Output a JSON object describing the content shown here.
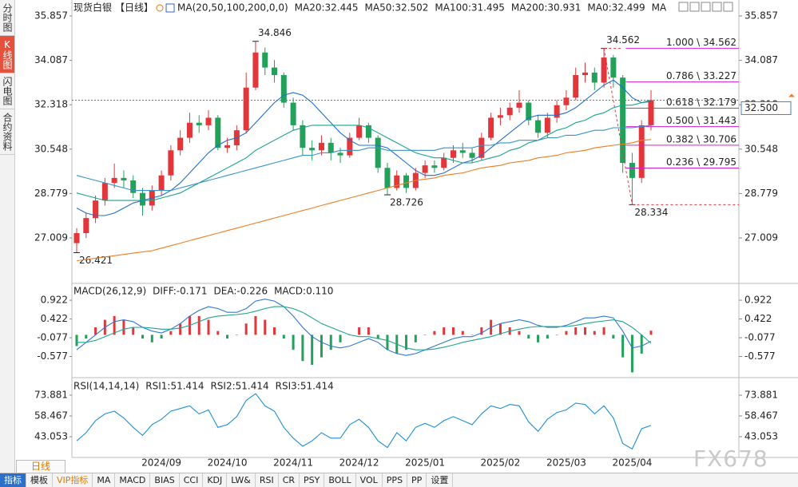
{
  "sidebar": [
    "分时图",
    "K线图",
    "闪电图",
    "合约资料"
  ],
  "header": {
    "symbol": "现货白银",
    "period": "【日线】"
  },
  "toolbar": {
    "period": "日线",
    "tabs": [
      "指标",
      "模板",
      "VIP指标",
      "MA",
      "MACD",
      "BIAS",
      "CCI",
      "KDJ",
      "LW&",
      "RSI",
      "CR",
      "PSY",
      "BOLL",
      "VOL",
      "PPS",
      "PP",
      "设置"
    ]
  },
  "watermark": "FX678",
  "chart_data": [
    {
      "type": "candlestick",
      "title": "MA(20,50,100,200,0,0)",
      "categories": [
        null,
        null,
        null,
        null,
        null,
        null,
        null,
        null,
        null,
        "2024/09",
        null,
        null,
        null,
        null,
        null,
        null,
        "2024/10",
        null,
        null,
        null,
        null,
        null,
        null,
        "2024/11",
        null,
        null,
        null,
        null,
        null,
        null,
        "2024/12",
        null,
        null,
        null,
        null,
        null,
        null,
        "2025/01",
        null,
        null,
        null,
        null,
        null,
        null,
        null,
        "2025/02",
        null,
        null,
        null,
        null,
        null,
        null,
        "2025/03",
        null,
        null,
        null,
        null,
        null,
        null,
        "2025/04",
        null,
        null
      ],
      "candles": [
        [
          26.8,
          27.4,
          26.421,
          27.2
        ],
        [
          27.2,
          28.0,
          27.0,
          27.8
        ],
        [
          27.8,
          28.7,
          27.6,
          28.5
        ],
        [
          28.5,
          29.4,
          28.3,
          29.2
        ],
        [
          29.2,
          29.97,
          29.0,
          29.4
        ],
        [
          29.4,
          29.7,
          29.0,
          29.3
        ],
        [
          29.3,
          29.5,
          28.6,
          28.8
        ],
        [
          28.8,
          29.0,
          27.9,
          28.3
        ],
        [
          28.3,
          29.1,
          28.1,
          28.9
        ],
        [
          28.9,
          29.7,
          28.7,
          29.5
        ],
        [
          29.5,
          30.7,
          29.3,
          30.5
        ],
        [
          30.5,
          31.3,
          30.3,
          31.0
        ],
        [
          31.0,
          32.0,
          30.8,
          31.6
        ],
        [
          31.6,
          31.9,
          31.2,
          31.5
        ],
        [
          31.5,
          32.1,
          31.3,
          31.8
        ],
        [
          31.8,
          31.9,
          30.5,
          30.6
        ],
        [
          30.6,
          31.0,
          30.4,
          30.7
        ],
        [
          30.7,
          31.5,
          30.5,
          31.3
        ],
        [
          31.3,
          33.6,
          31.2,
          33.0
        ],
        [
          33.0,
          34.846,
          32.9,
          34.4
        ],
        [
          34.4,
          34.6,
          33.5,
          33.8
        ],
        [
          33.8,
          34.1,
          33.2,
          33.5
        ],
        [
          33.5,
          33.6,
          32.2,
          32.4
        ],
        [
          32.4,
          32.6,
          31.3,
          31.5
        ],
        [
          31.5,
          31.7,
          30.3,
          30.6
        ],
        [
          30.6,
          30.9,
          30.1,
          30.5
        ],
        [
          30.5,
          31.1,
          30.3,
          30.8
        ],
        [
          30.8,
          31.0,
          30.1,
          30.4
        ],
        [
          30.4,
          30.6,
          30.0,
          30.3
        ],
        [
          30.3,
          31.2,
          30.2,
          31.0
        ],
        [
          31.0,
          31.8,
          30.9,
          31.5
        ],
        [
          31.5,
          31.6,
          30.8,
          31.0
        ],
        [
          31.0,
          31.1,
          29.6,
          29.8
        ],
        [
          29.8,
          30.0,
          28.726,
          29.0
        ],
        [
          29.0,
          29.7,
          28.9,
          29.5
        ],
        [
          29.5,
          29.6,
          28.8,
          29.0
        ],
        [
          29.0,
          29.8,
          28.9,
          29.6
        ],
        [
          29.6,
          30.1,
          29.4,
          29.9
        ],
        [
          29.9,
          30.1,
          29.6,
          29.8
        ],
        [
          29.8,
          30.4,
          29.7,
          30.2
        ],
        [
          30.2,
          30.7,
          30.0,
          30.5
        ],
        [
          30.5,
          30.8,
          30.2,
          30.4
        ],
        [
          30.4,
          30.6,
          30.0,
          30.2
        ],
        [
          30.2,
          31.2,
          30.1,
          31.0
        ],
        [
          31.0,
          32.0,
          30.9,
          31.8
        ],
        [
          31.8,
          32.2,
          31.5,
          31.9
        ],
        [
          31.9,
          32.4,
          31.7,
          32.2
        ],
        [
          32.2,
          32.9,
          32.0,
          32.4
        ],
        [
          32.4,
          32.5,
          31.5,
          31.7
        ],
        [
          31.7,
          31.9,
          31.0,
          31.2
        ],
        [
          31.2,
          32.0,
          31.0,
          31.8
        ],
        [
          31.8,
          32.5,
          31.6,
          32.3
        ],
        [
          32.3,
          32.9,
          32.1,
          32.6
        ],
        [
          32.6,
          33.8,
          32.5,
          33.5
        ],
        [
          33.5,
          34.0,
          33.2,
          33.6
        ],
        [
          33.6,
          33.8,
          32.9,
          33.2
        ],
        [
          33.2,
          34.562,
          33.0,
          34.2
        ],
        [
          34.2,
          34.3,
          33.0,
          33.4
        ],
        [
          33.4,
          33.5,
          29.6,
          30.0
        ],
        [
          30.0,
          30.4,
          28.334,
          29.4
        ],
        [
          29.4,
          31.7,
          29.2,
          31.5
        ],
        [
          31.5,
          32.9,
          31.3,
          32.5
        ]
      ],
      "point_labels": [
        "26.421",
        null,
        null,
        null,
        null,
        null,
        null,
        null,
        null,
        null,
        null,
        null,
        null,
        null,
        null,
        null,
        null,
        null,
        null,
        "34.846",
        null,
        null,
        null,
        null,
        null,
        null,
        null,
        null,
        null,
        null,
        null,
        null,
        null,
        "28.726",
        null,
        null,
        null,
        null,
        null,
        null,
        null,
        null,
        null,
        null,
        null,
        null,
        null,
        null,
        null,
        null,
        null,
        null,
        null,
        null,
        null,
        null,
        "34.562",
        null,
        null,
        "28.334",
        null,
        null
      ],
      "colors": {
        "up": "#e2363b",
        "down": "#23a05a"
      },
      "series": [
        {
          "name": "MA20:32.445",
          "color": "#1f6fd0",
          "values": [
            28.2,
            28.0,
            27.9,
            27.9,
            28.0,
            28.2,
            28.4,
            28.5,
            28.6,
            28.7,
            28.9,
            29.2,
            29.6,
            30.0,
            30.4,
            30.7,
            30.9,
            31.0,
            31.2,
            31.6,
            32.0,
            32.4,
            32.7,
            32.8,
            32.7,
            32.4,
            32.0,
            31.6,
            31.2,
            30.9,
            30.7,
            30.7,
            30.7,
            30.6,
            30.3,
            30.0,
            29.7,
            29.5,
            29.5,
            29.6,
            29.8,
            30.0,
            30.1,
            30.3,
            30.6,
            30.9,
            31.2,
            31.5,
            31.8,
            31.9,
            31.9,
            31.9,
            32.0,
            32.2,
            32.5,
            32.8,
            33.1,
            33.3,
            33.0,
            32.6,
            32.4,
            32.445
          ]
        },
        {
          "name": "MA50:32.502",
          "color": "#17a58c",
          "values": [
            28.8,
            28.7,
            28.6,
            28.5,
            28.5,
            28.5,
            28.5,
            28.5,
            28.5,
            28.6,
            28.7,
            28.8,
            29.0,
            29.2,
            29.4,
            29.6,
            29.8,
            30.0,
            30.2,
            30.5,
            30.7,
            30.9,
            31.1,
            31.3,
            31.4,
            31.5,
            31.5,
            31.5,
            31.5,
            31.5,
            31.5,
            31.4,
            31.2,
            31.0,
            30.8,
            30.6,
            30.4,
            30.3,
            30.2,
            30.2,
            30.1,
            30.0,
            30.0,
            30.1,
            30.2,
            30.3,
            30.5,
            30.6,
            30.8,
            30.9,
            31.1,
            31.3,
            31.4,
            31.6,
            31.7,
            31.9,
            32.0,
            32.2,
            32.3,
            32.3,
            32.4,
            32.502
          ]
        },
        {
          "name": "MA100:31.495",
          "color": "#3a93c8",
          "values": [
            29.5,
            29.4,
            29.3,
            29.2,
            29.1,
            29.0,
            28.9,
            28.9,
            28.9,
            28.9,
            28.9,
            29.0,
            29.1,
            29.2,
            29.3,
            29.4,
            29.5,
            29.6,
            29.7,
            29.8,
            29.9,
            30.0,
            30.1,
            30.2,
            30.3,
            30.3,
            30.4,
            30.4,
            30.5,
            30.5,
            30.5,
            30.6,
            30.6,
            30.5,
            30.5,
            30.5,
            30.5,
            30.5,
            30.5,
            30.6,
            30.6,
            30.6,
            30.6,
            30.7,
            30.7,
            30.8,
            30.8,
            30.9,
            30.9,
            30.9,
            31.0,
            31.0,
            31.1,
            31.1,
            31.2,
            31.3,
            31.3,
            31.4,
            31.4,
            31.4,
            31.45,
            31.495
          ]
        },
        {
          "name": "MA200:30.931",
          "color": "#ef7d22",
          "values": [
            26.1,
            26.15,
            26.2,
            26.25,
            26.3,
            26.35,
            26.4,
            26.45,
            26.5,
            26.6,
            26.7,
            26.8,
            26.9,
            27.0,
            27.1,
            27.2,
            27.3,
            27.4,
            27.5,
            27.6,
            27.7,
            27.8,
            27.9,
            28.0,
            28.1,
            28.2,
            28.3,
            28.4,
            28.5,
            28.6,
            28.7,
            28.8,
            28.9,
            29.0,
            29.1,
            29.2,
            29.3,
            29.35,
            29.4,
            29.5,
            29.55,
            29.6,
            29.7,
            29.8,
            29.85,
            29.9,
            30.0,
            30.05,
            30.1,
            30.2,
            30.25,
            30.3,
            30.4,
            30.45,
            30.5,
            30.6,
            30.65,
            30.7,
            30.75,
            30.8,
            30.9,
            30.931
          ]
        }
      ],
      "legend_extra": [
        {
          "text": "MA0:32.499",
          "color": "#e040c8"
        },
        {
          "text": "MA",
          "color": "#e040c8"
        }
      ],
      "ylim": [
        25.29,
        35.92
      ],
      "yticks": [
        35.857,
        34.087,
        32.318,
        30.548,
        28.779,
        27.009
      ],
      "grid": false,
      "last_price": {
        "value": 32.5,
        "label": "32.500"
      },
      "fibonacci": {
        "color": "#d21fd2",
        "levels": [
          {
            "value": 34.562,
            "label": "1.000 \\ 34.562"
          },
          {
            "value": 33.227,
            "label": "0.786 \\ 33.227"
          },
          {
            "value": 32.179,
            "label": "0.618 \\ 32.179"
          },
          {
            "value": 31.443,
            "label": "0.500 \\ 31.443"
          },
          {
            "value": 30.706,
            "label": "0.382 \\ 30.706"
          },
          {
            "value": 29.795,
            "label": "0.236 \\ 29.795"
          }
        ]
      }
    },
    {
      "type": "bar",
      "title": "MACD(26,12,9)",
      "bar_name": "MACD:0.110",
      "bar_name_color": "#2f78d4",
      "colors": {
        "up": "#e2363b",
        "down": "#23a05a"
      },
      "values": [
        -0.3,
        -0.1,
        0.2,
        0.4,
        0.5,
        0.4,
        0.2,
        -0.1,
        -0.2,
        -0.1,
        0.1,
        0.3,
        0.5,
        0.5,
        0.4,
        0.1,
        -0.1,
        0.0,
        0.3,
        0.5,
        0.4,
        0.2,
        -0.1,
        -0.4,
        -0.7,
        -0.8,
        -0.6,
        -0.4,
        -0.2,
        0.0,
        0.2,
        0.2,
        -0.1,
        -0.4,
        -0.5,
        -0.4,
        -0.2,
        0.0,
        0.1,
        0.2,
        0.2,
        0.1,
        0.0,
        0.2,
        0.4,
        0.3,
        0.2,
        0.1,
        -0.1,
        -0.2,
        -0.1,
        0.0,
        0.1,
        0.2,
        0.2,
        0.1,
        0.2,
        -0.1,
        -0.6,
        -1.0,
        -0.5,
        0.11
      ],
      "series": [
        {
          "name": "DIFF:-0.171",
          "color": "#2f78d4",
          "values": [
            -0.4,
            -0.2,
            0.0,
            0.2,
            0.35,
            0.4,
            0.35,
            0.2,
            0.1,
            0.05,
            0.15,
            0.3,
            0.5,
            0.65,
            0.75,
            0.7,
            0.6,
            0.6,
            0.7,
            0.9,
            0.95,
            0.9,
            0.75,
            0.5,
            0.2,
            -0.05,
            -0.2,
            -0.3,
            -0.35,
            -0.3,
            -0.2,
            -0.1,
            -0.2,
            -0.4,
            -0.5,
            -0.55,
            -0.5,
            -0.4,
            -0.3,
            -0.2,
            -0.1,
            -0.05,
            -0.05,
            0.05,
            0.2,
            0.3,
            0.35,
            0.4,
            0.35,
            0.25,
            0.2,
            0.2,
            0.25,
            0.35,
            0.45,
            0.45,
            0.5,
            0.45,
            0.1,
            -0.35,
            -0.3,
            -0.171
          ]
        },
        {
          "name": "DEA:-0.226",
          "color": "#1fa58f",
          "values": [
            -0.2,
            -0.2,
            -0.15,
            -0.05,
            0.05,
            0.15,
            0.2,
            0.2,
            0.18,
            0.15,
            0.15,
            0.18,
            0.25,
            0.35,
            0.45,
            0.5,
            0.52,
            0.54,
            0.57,
            0.63,
            0.7,
            0.75,
            0.75,
            0.7,
            0.6,
            0.45,
            0.3,
            0.2,
            0.1,
            0.0,
            -0.05,
            -0.05,
            -0.1,
            -0.15,
            -0.25,
            -0.35,
            -0.4,
            -0.4,
            -0.38,
            -0.33,
            -0.27,
            -0.2,
            -0.15,
            -0.1,
            -0.05,
            0.03,
            0.1,
            0.15,
            0.2,
            0.22,
            0.22,
            0.22,
            0.22,
            0.25,
            0.3,
            0.34,
            0.37,
            0.4,
            0.35,
            0.2,
            0.0,
            -0.226
          ]
        }
      ],
      "ylim": [
        -1.077,
        1.306
      ],
      "yticks": [
        0.922,
        0.422,
        -0.077,
        -0.577
      ]
    },
    {
      "type": "line",
      "title": "RSI(14,14,14)",
      "series": [
        {
          "name": "RSI1:51.414",
          "color": "#1e8fd6",
          "values": [
            40,
            46,
            55,
            60,
            62,
            57,
            50,
            44,
            52,
            56,
            62,
            64,
            66,
            60,
            63,
            50,
            52,
            58,
            70,
            75,
            66,
            62,
            50,
            42,
            36,
            40,
            46,
            42,
            42,
            52,
            56,
            50,
            40,
            35,
            46,
            40,
            50,
            53,
            50,
            55,
            58,
            55,
            52,
            60,
            66,
            64,
            67,
            66,
            54,
            47,
            56,
            61,
            63,
            68,
            67,
            60,
            66,
            57,
            38,
            34,
            49,
            51.414
          ]
        }
      ],
      "legend_extra": [
        {
          "text": "RSI2:51.414",
          "color": "#1e8fd6"
        },
        {
          "text": "RSI3:51.414",
          "color": "#1e8fd6"
        }
      ],
      "ylim": [
        28.24,
        85.14
      ],
      "yticks": [
        73.881,
        58.467,
        43.053
      ]
    }
  ]
}
